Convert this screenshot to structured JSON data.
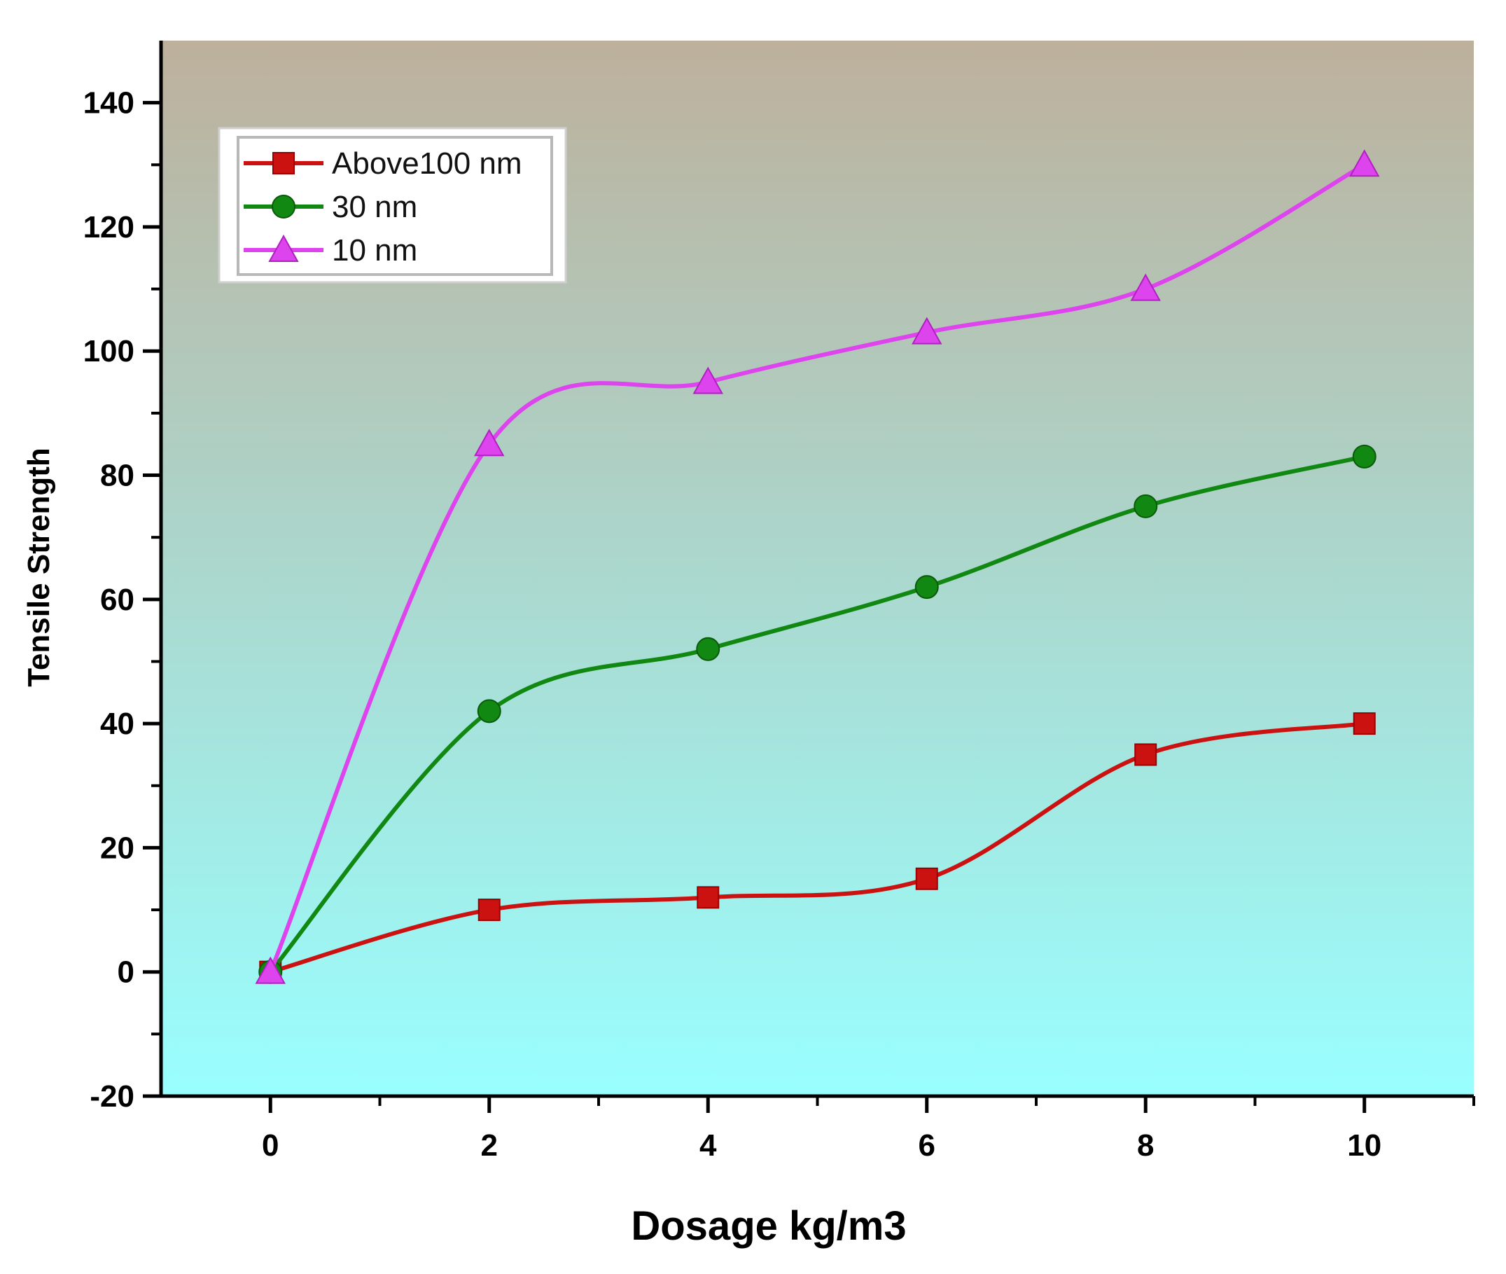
{
  "chart_data": {
    "type": "line",
    "title": "",
    "xlabel": "Dosage kg/m3",
    "ylabel": "Tensile Strength",
    "xlim": [
      -1,
      11
    ],
    "ylim": [
      -20,
      150
    ],
    "x_ticks": [
      0,
      2,
      4,
      6,
      8,
      10
    ],
    "x_minor_ticks": [
      1,
      3,
      5,
      7,
      9,
      11
    ],
    "y_ticks": [
      -20,
      0,
      20,
      40,
      60,
      80,
      100,
      120,
      140
    ],
    "y_minor_ticks": [
      -10,
      10,
      30,
      50,
      70,
      90,
      110,
      130
    ],
    "grid": false,
    "legend_position": "top-left",
    "background_gradient": {
      "top": "#bdb09c",
      "bottom": "#99ffff"
    },
    "x": [
      0,
      2,
      4,
      6,
      8,
      10
    ],
    "series": [
      {
        "name": "Above100 nm",
        "values": [
          0,
          10,
          12,
          15,
          35,
          40
        ],
        "color": "#cc1111",
        "marker": "square"
      },
      {
        "name": "30 nm",
        "values": [
          0,
          42,
          52,
          62,
          75,
          83
        ],
        "color": "#118811",
        "marker": "circle"
      },
      {
        "name": "10 nm",
        "values": [
          0,
          85,
          95,
          103,
          110,
          130
        ],
        "color": "#dd44ee",
        "marker": "triangle"
      }
    ]
  }
}
